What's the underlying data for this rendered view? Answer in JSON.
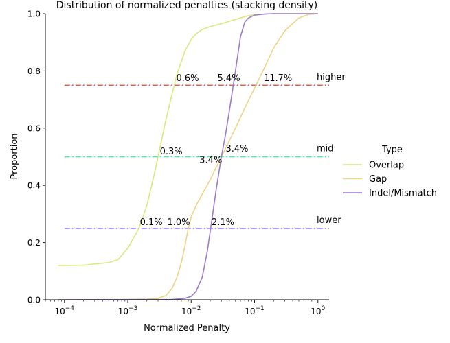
{
  "chart_data": {
    "type": "line",
    "title": "Distribution of normalized penalties (stacking density)",
    "xlabel": "Normalized Penalty",
    "ylabel": "Proportion",
    "x_scale": "log",
    "xlim": [
      5e-05,
      1.5
    ],
    "ylim": [
      0,
      1
    ],
    "x_ticks": [
      {
        "value": 0.0001,
        "base": "10",
        "exp": "−4"
      },
      {
        "value": 0.001,
        "base": "10",
        "exp": "−3"
      },
      {
        "value": 0.01,
        "base": "10",
        "exp": "−2"
      },
      {
        "value": 0.1,
        "base": "10",
        "exp": "−1"
      },
      {
        "value": 1,
        "base": "10",
        "exp": "0"
      }
    ],
    "y_ticks": [
      "0.0",
      "0.2",
      "0.4",
      "0.6",
      "0.8",
      "1.0"
    ],
    "grid": false,
    "legend": {
      "title": "Type",
      "placement": "right",
      "entries": [
        {
          "label": "Overlap",
          "color": "#dce67f"
        },
        {
          "label": "Gap",
          "color": "#ebd488"
        },
        {
          "label": "Indel/Mismatch",
          "color": "#9b7ccc"
        }
      ]
    },
    "series": [
      {
        "name": "Overlap",
        "color": "#dce67f",
        "x": [
          8e-05,
          0.0001,
          0.0002,
          0.0003,
          0.0005,
          0.0007,
          0.001,
          0.0015,
          0.002,
          0.0025,
          0.003,
          0.004,
          0.005,
          0.006,
          0.008,
          0.01,
          0.012,
          0.015,
          0.02,
          0.03,
          0.05,
          0.07,
          0.1,
          0.2,
          0.5,
          1.0
        ],
        "y": [
          0.12,
          0.12,
          0.121,
          0.125,
          0.13,
          0.14,
          0.18,
          0.25,
          0.33,
          0.42,
          0.5,
          0.63,
          0.72,
          0.79,
          0.87,
          0.91,
          0.93,
          0.945,
          0.955,
          0.965,
          0.98,
          0.99,
          0.997,
          1.0,
          1.0,
          1.0
        ]
      },
      {
        "name": "Gap",
        "color": "#ebd488",
        "x": [
          8e-05,
          0.001,
          0.002,
          0.003,
          0.004,
          0.005,
          0.006,
          0.007,
          0.008,
          0.009,
          0.01,
          0.012,
          0.015,
          0.02,
          0.03,
          0.05,
          0.07,
          0.1,
          0.15,
          0.2,
          0.3,
          0.5,
          0.7,
          1.0
        ],
        "y": [
          0.0,
          0.001,
          0.002,
          0.005,
          0.015,
          0.04,
          0.08,
          0.13,
          0.19,
          0.25,
          0.29,
          0.33,
          0.37,
          0.42,
          0.5,
          0.6,
          0.67,
          0.74,
          0.82,
          0.88,
          0.94,
          0.985,
          0.997,
          1.0
        ]
      },
      {
        "name": "Indel/Mismatch",
        "color": "#9b7ccc",
        "x": [
          8e-05,
          0.005,
          0.008,
          0.01,
          0.012,
          0.015,
          0.018,
          0.02,
          0.025,
          0.03,
          0.035,
          0.04,
          0.05,
          0.06,
          0.07,
          0.08,
          0.1,
          0.15,
          0.2,
          0.5,
          1.0
        ],
        "y": [
          0.0,
          0.001,
          0.005,
          0.012,
          0.03,
          0.08,
          0.17,
          0.24,
          0.39,
          0.5,
          0.58,
          0.66,
          0.8,
          0.92,
          0.97,
          0.985,
          0.995,
          0.999,
          1.0,
          1.0,
          1.0
        ]
      }
    ],
    "reference_lines": [
      {
        "y": 0.75,
        "label": "higher",
        "color": "#f2573f"
      },
      {
        "y": 0.5,
        "label": "mid",
        "color": "#3df0a0"
      },
      {
        "y": 0.25,
        "label": "lower",
        "color": "#5a40f0"
      }
    ],
    "reference_line_xmin": 0.0001,
    "annotations": [
      {
        "text": "0.6%",
        "x": 0.0058,
        "y": 0.777
      },
      {
        "text": "5.4%",
        "x": 0.026,
        "y": 0.777
      },
      {
        "text": "11.7%",
        "x": 0.14,
        "y": 0.777
      },
      {
        "text": "0.3%",
        "x": 0.0032,
        "y": 0.52
      },
      {
        "text": "3.4%",
        "x": 0.035,
        "y": 0.53
      },
      {
        "text": "3.4%",
        "x": 0.0135,
        "y": 0.49
      },
      {
        "text": "0.1%",
        "x": 0.00155,
        "y": 0.273
      },
      {
        "text": "1.0%",
        "x": 0.0042,
        "y": 0.273
      },
      {
        "text": "2.1%",
        "x": 0.021,
        "y": 0.273
      }
    ]
  }
}
